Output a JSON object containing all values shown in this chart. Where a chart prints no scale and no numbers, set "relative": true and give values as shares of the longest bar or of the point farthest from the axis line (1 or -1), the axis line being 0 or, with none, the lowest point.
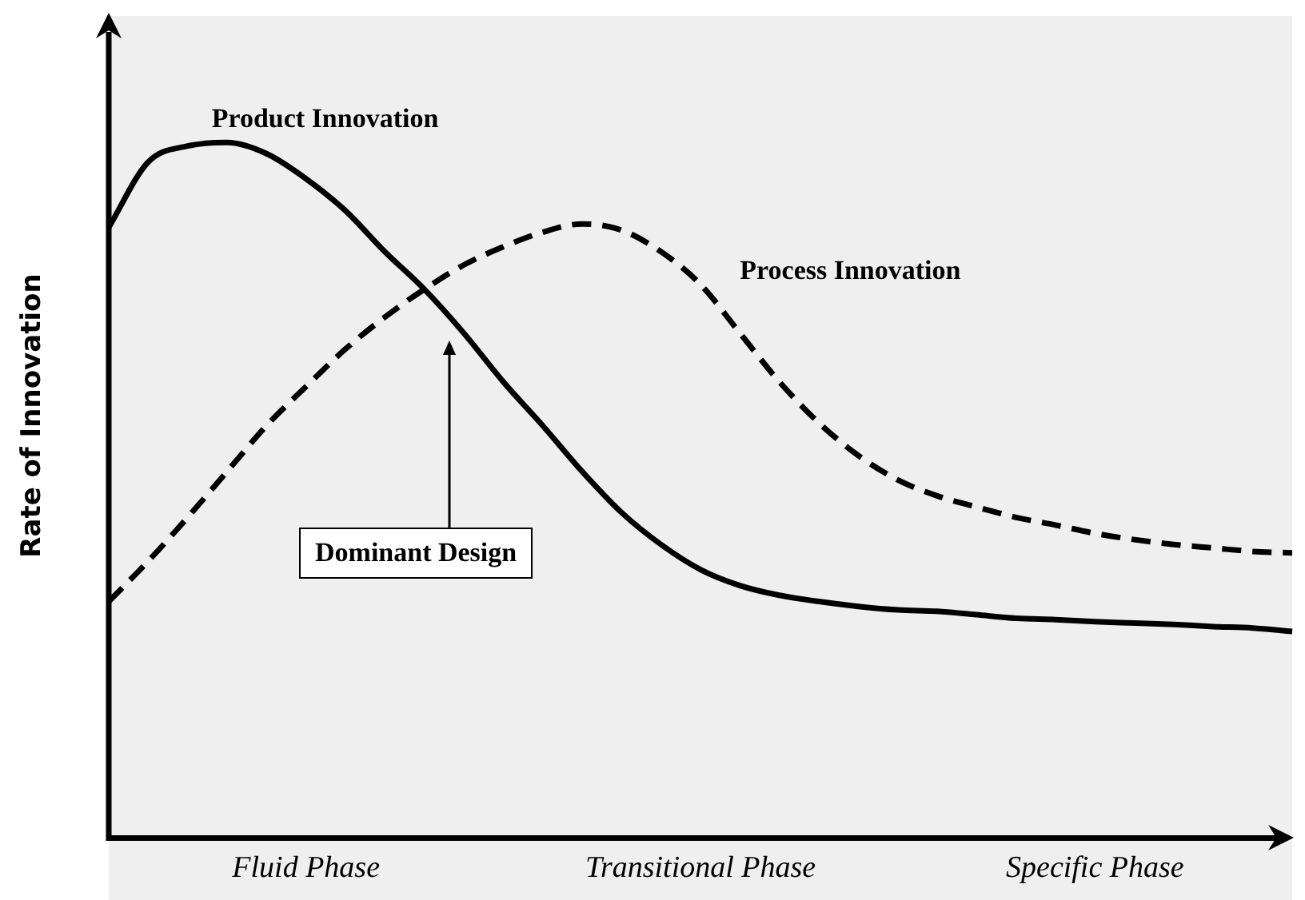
{
  "chart_data": {
    "type": "line",
    "relative": true,
    "ylabel": "Rate of Innovation",
    "categories": [
      null,
      null,
      null,
      null,
      null,
      "Fluid Phase",
      null,
      null,
      null,
      null,
      null,
      null,
      null,
      null,
      null,
      "Transitional Phase",
      null,
      null,
      null,
      null,
      null,
      null,
      null,
      null,
      null,
      "Specific Phase",
      null,
      null,
      null,
      null,
      null
    ],
    "series": [
      {
        "name": "Product Innovation",
        "color": "#000000",
        "line_style": "solid",
        "values": [
          0.878,
          0.972,
          0.995,
          1.0,
          0.984,
          0.948,
          0.902,
          0.843,
          0.789,
          0.726,
          0.656,
          0.593,
          0.527,
          0.468,
          0.422,
          0.386,
          0.363,
          0.349,
          0.34,
          0.333,
          0.328,
          0.326,
          0.321,
          0.316,
          0.314,
          0.311,
          0.309,
          0.307,
          0.304,
          0.302,
          0.297
        ]
      },
      {
        "name": "Process Innovation",
        "color": "#000000",
        "line_style": "dashed",
        "values": [
          0.34,
          0.398,
          0.461,
          0.527,
          0.593,
          0.649,
          0.703,
          0.749,
          0.789,
          0.824,
          0.85,
          0.871,
          0.883,
          0.874,
          0.843,
          0.796,
          0.726,
          0.656,
          0.597,
          0.55,
          0.515,
          0.492,
          0.476,
          0.461,
          0.45,
          0.438,
          0.429,
          0.422,
          0.417,
          0.412,
          0.41
        ]
      }
    ],
    "annotations": [
      "Dominant Design"
    ],
    "marker": "none",
    "grid": false,
    "legend": false,
    "tick_labels": "x"
  }
}
